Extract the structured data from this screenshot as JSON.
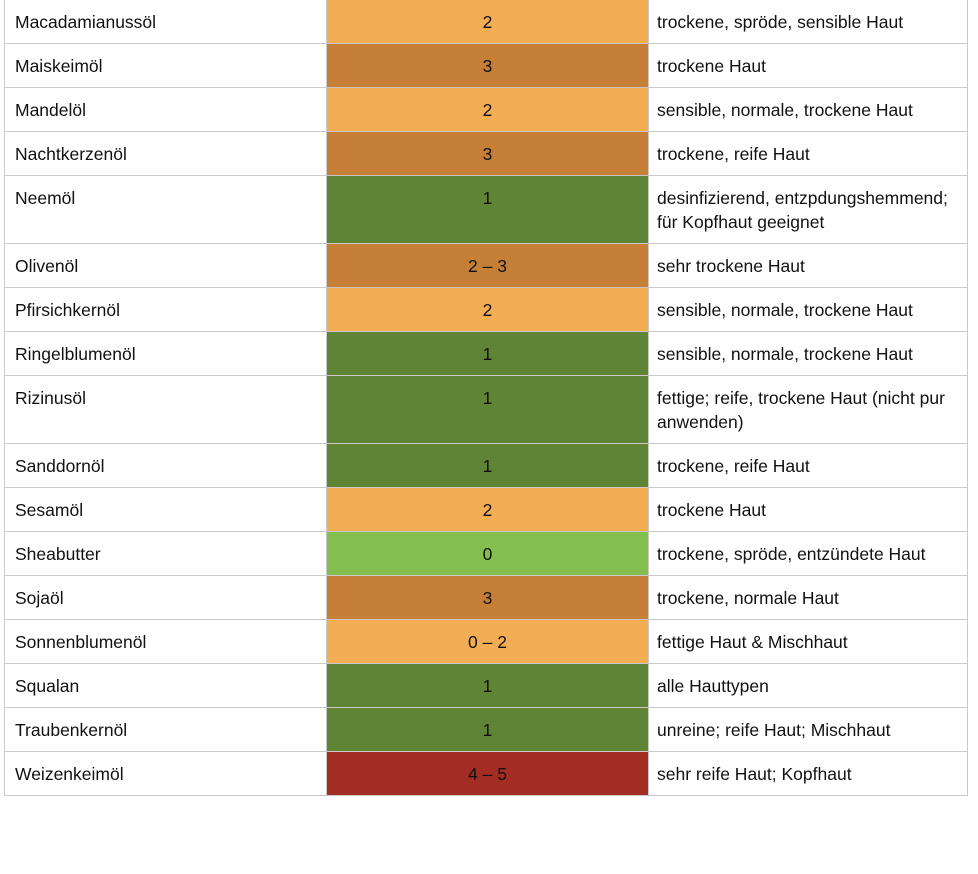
{
  "colors": {
    "0": "#82bf4f",
    "1": "#5f8436",
    "2": "#f3ae55",
    "3": "#c67f36",
    "2 – 3": "#c67f36",
    "0 – 2": "#f3ae55",
    "4 – 5": "#a32c23",
    "grid": "#c9c9c9"
  },
  "rows": [
    {
      "name": "Macadamianussöl",
      "rating": "2",
      "skin": "trockene, spröde, sensible Haut"
    },
    {
      "name": "Maiskeimöl",
      "rating": "3",
      "skin": "trockene Haut"
    },
    {
      "name": "Mandelöl",
      "rating": "2",
      "skin": "sensible, normale, trockene Haut"
    },
    {
      "name": "Nachtkerzenöl",
      "rating": "3",
      "skin": "trockene, reife Haut"
    },
    {
      "name": "Neemöl",
      "rating": "1",
      "skin": "desinfizierend, entzpdungshemmend; für Kopfhaut geeignet"
    },
    {
      "name": "Olivenöl",
      "rating": "2 – 3",
      "skin": "sehr trockene Haut"
    },
    {
      "name": "Pfirsichkernöl",
      "rating": "2",
      "skin": "sensible, normale, trockene Haut"
    },
    {
      "name": "Ringelblumenöl",
      "rating": "1",
      "skin": "sensible, normale, trockene Haut"
    },
    {
      "name": "Rizinusöl",
      "rating": "1",
      "skin": "fettige; reife, trockene Haut (nicht pur anwenden)"
    },
    {
      "name": "Sanddornöl",
      "rating": "1",
      "skin": "trockene, reife Haut"
    },
    {
      "name": "Sesamöl",
      "rating": "2",
      "skin": "trockene Haut"
    },
    {
      "name": "Sheabutter",
      "rating": "0",
      "skin": "trockene, spröde, entzündete Haut"
    },
    {
      "name": "Sojaöl",
      "rating": "3",
      "skin": "trockene, normale Haut"
    },
    {
      "name": "Sonnenblumenöl",
      "rating": "0 – 2",
      "skin": "fettige Haut & Mischhaut"
    },
    {
      "name": "Squalan",
      "rating": "1",
      "skin": "alle Hauttypen"
    },
    {
      "name": "Traubenkernöl",
      "rating": "1",
      "skin": "unreine; reife Haut; Mischhaut"
    },
    {
      "name": "Weizenkeimöl",
      "rating": "4 – 5",
      "skin": "sehr reife Haut; Kopfhaut"
    }
  ]
}
